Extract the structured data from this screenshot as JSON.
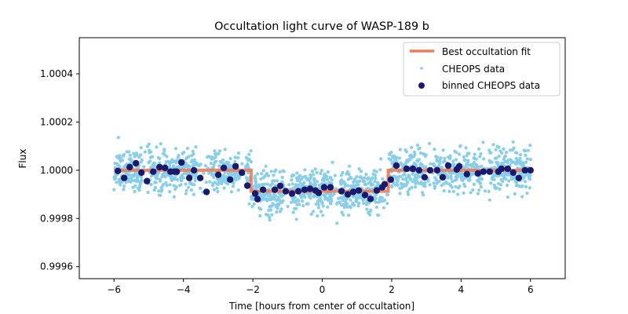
{
  "chart_data": {
    "type": "scatter",
    "title": "Occultation light curve of WASP-189 b",
    "xlabel": "Time [hours from center of occultation]",
    "ylabel": "Flux",
    "xlim": [
      -7,
      7
    ],
    "ylim": [
      0.99955,
      1.00055
    ],
    "xticks": [
      -6,
      -4,
      -2,
      0,
      2,
      4,
      6
    ],
    "xtick_labels": [
      "−6",
      "−4",
      "−2",
      "0",
      "2",
      "4",
      "6"
    ],
    "yticks": [
      0.9996,
      0.9998,
      1.0,
      1.0002,
      1.0004
    ],
    "ytick_labels": [
      "0.9996",
      "0.9998",
      "1.0000",
      "1.0002",
      "1.0004"
    ],
    "grid": false,
    "legend": {
      "placement": "top-right",
      "entries": [
        {
          "label": "Best occultation fit",
          "kind": "line",
          "color": "#f07c55"
        },
        {
          "label": "CHEOPS data",
          "kind": "point",
          "color": "#87ceeb"
        },
        {
          "label": "binned CHEOPS data",
          "kind": "point",
          "color": "#191970"
        }
      ]
    },
    "series": [
      {
        "name": "Best occultation fit",
        "kind": "line",
        "color": "#f07c55",
        "x": [
          -6,
          -2.05,
          -2.05,
          1.9,
          1.9,
          6
        ],
        "y": [
          1.0,
          1.0,
          0.999913,
          0.999913,
          1.0,
          1.0
        ]
      },
      {
        "name": "CHEOPS data",
        "kind": "scatter",
        "color": "#87ceeb",
        "time_range": [
          -6,
          6
        ],
        "n_points": 2000,
        "scatter_std": 8e-05,
        "note_visible_gaps_hours": [
          [
            -5.2,
            -5.0
          ],
          [
            -3.6,
            -3.2
          ],
          [
            -2.4,
            -2.2
          ],
          [
            -1.1,
            -0.9
          ],
          [
            0.3,
            0.5
          ],
          [
            1.7,
            1.9
          ],
          [
            3.0,
            3.2
          ],
          [
            4.6,
            4.8
          ]
        ]
      },
      {
        "name": "binned CHEOPS data",
        "kind": "scatter",
        "color": "#191970",
        "x": [
          -5.887,
          -5.706,
          -5.548,
          -5.367,
          -5.209,
          -5.051,
          -4.87,
          -4.689,
          -4.531,
          -4.373,
          -4.26,
          -4.192,
          -4.056,
          -3.831,
          -3.695,
          -3.514,
          -3.333,
          -2.994,
          -2.836,
          -2.655,
          -2.497,
          -2.316,
          -2.158,
          -1.932,
          -1.864,
          -1.706,
          -1.367,
          -1.209,
          -1.051,
          -0.87,
          -0.689,
          -0.508,
          -0.35,
          -0.192,
          -0.102,
          0.056,
          0.237,
          0.554,
          0.734,
          0.893,
          1.051,
          1.232,
          1.39,
          1.571,
          1.729,
          1.797,
          1.977,
          2.136,
          2.429,
          2.61,
          2.791,
          2.949,
          3.107,
          3.311,
          3.469,
          3.627,
          3.876,
          3.944,
          4.169,
          4.486,
          4.644,
          4.825,
          5.074,
          5.164,
          5.345,
          5.503,
          5.661,
          5.842,
          6.0
        ],
        "y": [
          0.999997,
          0.999968,
          1.000013,
          1.000029,
          0.99999,
          0.999955,
          0.999994,
          1.000013,
          1.00001,
          0.999994,
          0.999994,
          0.999994,
          1.000032,
          0.999968,
          1.0,
          0.999968,
          0.99991,
          0.999981,
          1.00001,
          0.999961,
          1.000016,
          0.99999,
          0.999936,
          0.999903,
          0.99988,
          0.999919,
          0.999919,
          0.999935,
          0.999913,
          0.999903,
          0.999913,
          0.999919,
          0.999923,
          0.999916,
          0.999906,
          0.999929,
          0.999929,
          0.999913,
          0.9999,
          0.99991,
          0.999916,
          0.999897,
          0.999881,
          0.999916,
          0.999929,
          0.999942,
          0.999961,
          1.000019,
          1.000006,
          1.000006,
          1.0,
          0.999971,
          1.0,
          1.0,
          0.999971,
          1.000019,
          1.000003,
          1.000016,
          0.999984,
          0.999987,
          0.999994,
          0.999994,
          0.999994,
          1.000006,
          1.000006,
          0.99999,
          0.999968,
          1.0,
          1.0
        ]
      }
    ]
  }
}
